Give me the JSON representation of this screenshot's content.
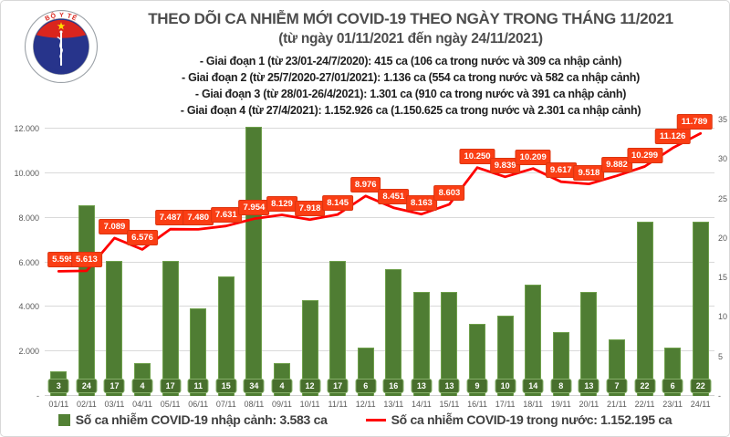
{
  "header": {
    "title": "THEO DÕI CA NHIỄM MỚI COVID-19 THEO NGÀY TRONG THÁNG 11/2021",
    "subtitle": "(từ ngày 01/11/2021 đến ngày 24/11/2021)",
    "phases": [
      "- Giai đoạn 1 (từ 23/01-24/7/2020): 415 ca (106 ca trong nước và 309 ca nhập cảnh)",
      "- Giai đoạn 2 (từ 25/7/2020-27/01/2021): 1.136 ca (554 ca trong nước và 582 ca nhập cảnh)",
      "- Giai đoạn 3 (từ 28/01-26/4/2021): 1.301 ca (910 ca trong nước và 391 ca nhập cảnh)",
      "- Giai đoạn 4 (từ 27/4/2021): 1.152.926 ca (1.150.625 ca trong nước và 2.301 ca nhập cảnh)"
    ]
  },
  "logo": {
    "top_text": "BỘ Y TẾ",
    "bottom_text": "MINISTRY OF HEALTH",
    "flag_red": "#da251d",
    "star_yellow": "#ffde00",
    "emblem_blue": "#27348b"
  },
  "chart_data": {
    "type": "combo_bar_line",
    "categories": [
      "01/11",
      "02/11",
      "03/11",
      "04/11",
      "05/11",
      "06/11",
      "07/11",
      "08/11",
      "09/11",
      "10/11",
      "11/11",
      "12/11",
      "13/11",
      "14/11",
      "15/11",
      "16/11",
      "17/11",
      "18/11",
      "19/11",
      "20/11",
      "21/11",
      "22/11",
      "23/11",
      "24/11"
    ],
    "series": [
      {
        "name": "Số ca nhiễm COVID-19 nhập cảnh",
        "type": "bar",
        "axis": "right",
        "color": "#4f7d33",
        "label_bg": "#486f2d",
        "values": [
          3,
          24,
          17,
          4,
          17,
          11,
          15,
          34,
          4,
          12,
          17,
          6,
          16,
          13,
          13,
          9,
          10,
          14,
          8,
          13,
          7,
          22,
          6,
          22
        ]
      },
      {
        "name": "Số ca nhiễm COVID-19 trong nước",
        "type": "line",
        "axis": "left",
        "color": "#ff0000",
        "label_bg": "#fa3e14",
        "values": [
          5595,
          5613,
          7089,
          6576,
          7487,
          7480,
          7631,
          7954,
          8129,
          7918,
          8145,
          8976,
          8451,
          8163,
          8603,
          10250,
          9839,
          10209,
          9617,
          9518,
          9882,
          10299,
          11126,
          11789
        ],
        "value_labels": [
          "5.595",
          "5.613",
          "7.089",
          "6.576",
          "7.487",
          "7.480",
          "7.631",
          "7.954",
          "8.129",
          "7.918",
          "8.145",
          "8.976",
          "8.451",
          "8.163",
          "8.603",
          "10.250",
          "9.839",
          "10.209",
          "9.617",
          "9.518",
          "9.882",
          "10.299",
          "11.126",
          "11.789"
        ]
      }
    ],
    "left_axis": {
      "max": 12000,
      "ticks": [
        {
          "value": 2000,
          "label": "2.000"
        },
        {
          "value": 4000,
          "label": "4.000"
        },
        {
          "value": 6000,
          "label": "6.000"
        },
        {
          "value": 8000,
          "label": "8.000"
        },
        {
          "value": 10000,
          "label": "10.000"
        },
        {
          "value": 12000,
          "label": "12.000"
        }
      ],
      "zero_label": "-"
    },
    "right_axis": {
      "max": 35,
      "ticks": [
        {
          "value": 5,
          "label": "5"
        },
        {
          "value": 10,
          "label": "10"
        },
        {
          "value": 15,
          "label": "15"
        },
        {
          "value": 20,
          "label": "20"
        },
        {
          "value": 25,
          "label": "25"
        },
        {
          "value": 30,
          "label": "30"
        },
        {
          "value": 35,
          "label": "35"
        }
      ],
      "zero_label": "-"
    },
    "grid": true,
    "gridline_color": "#d9d9d9",
    "legend_position": "bottom"
  },
  "legend": {
    "items": [
      {
        "swatch": "bar",
        "color": "#538135",
        "label": "Số ca nhiễm COVID-19 nhập cảnh: 3.583 ca"
      },
      {
        "swatch": "line",
        "color": "#ff0000",
        "label": "Số ca nhiễm COVID-19 trong nước: 1.152.195 ca"
      }
    ]
  }
}
